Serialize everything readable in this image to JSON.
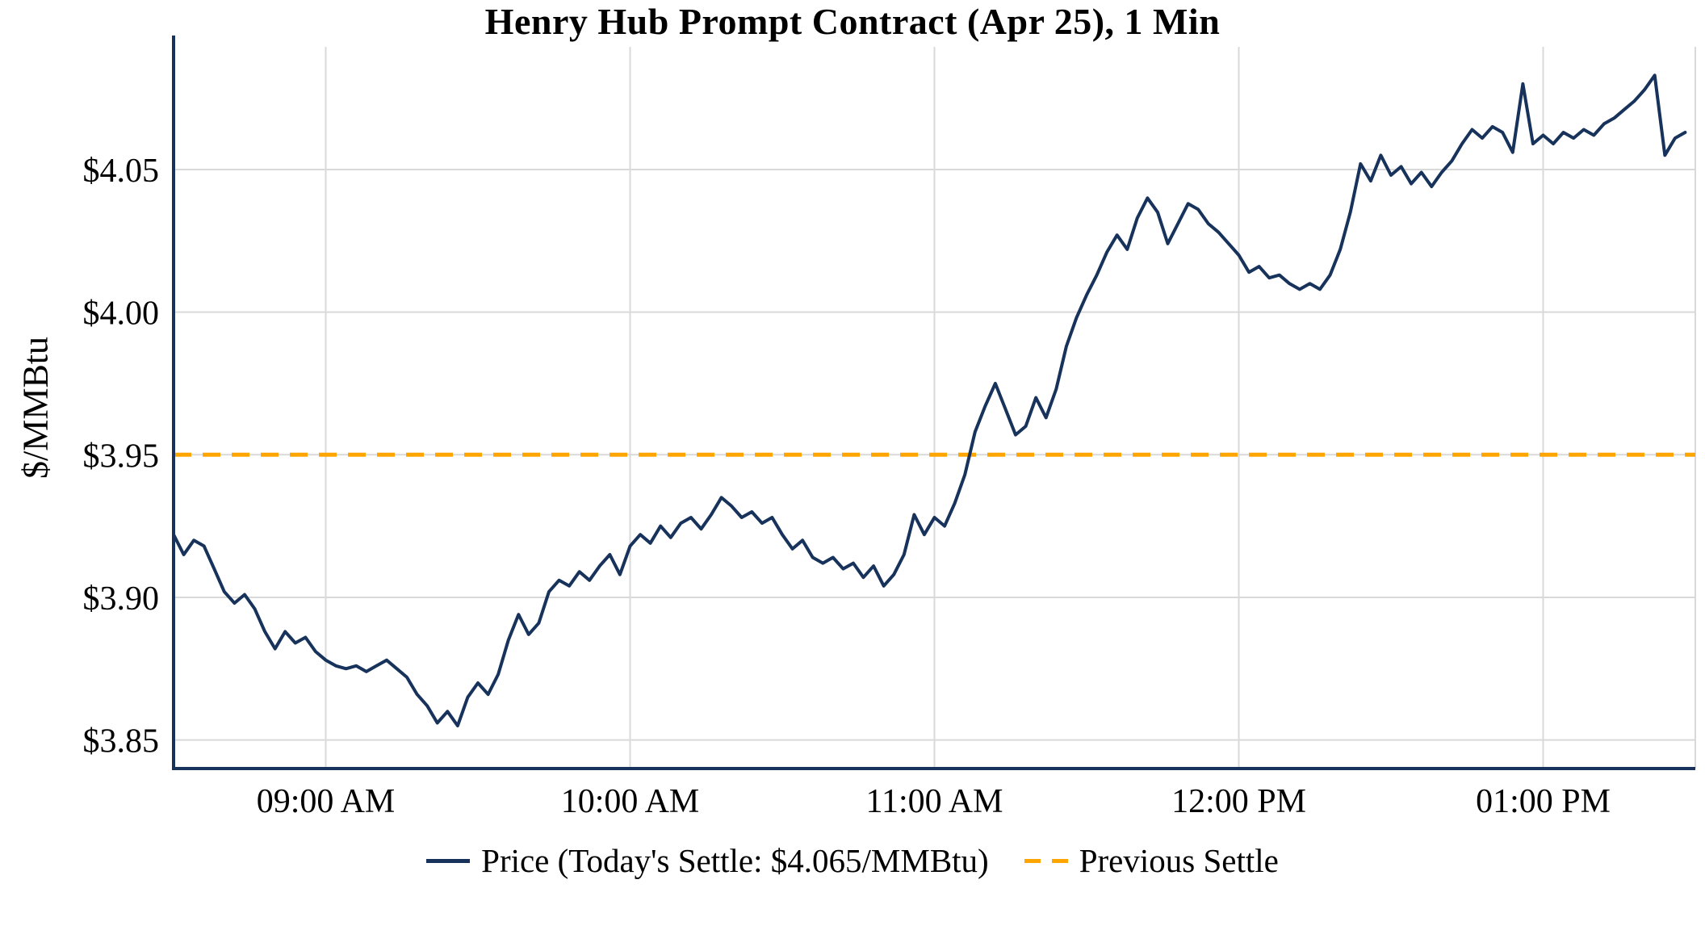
{
  "chart_data": {
    "type": "line",
    "title": "Henry Hub Prompt Contract (Apr 25), 1 Min",
    "xlabel": "",
    "ylabel": "$/MMBtu",
    "grid": true,
    "legend_position": "bottom",
    "legend": {
      "price": "Price (Today's Settle: $4.065/MMBtu)",
      "previous_settle": "Previous Settle"
    },
    "todays_settle": 4.065,
    "previous_settle": 3.95,
    "ylim": [
      3.84,
      4.093
    ],
    "y_ticks": [
      {
        "value": 3.85,
        "label": "$3.85"
      },
      {
        "value": 3.9,
        "label": "$3.90"
      },
      {
        "value": 3.95,
        "label": "$3.95"
      },
      {
        "value": 4.0,
        "label": "$4.00"
      },
      {
        "value": 4.05,
        "label": "$4.05"
      }
    ],
    "x_range_minutes": [
      510,
      810
    ],
    "x_ticks": [
      {
        "minutes": 540,
        "label": "09:00 AM"
      },
      {
        "minutes": 600,
        "label": "10:00 AM"
      },
      {
        "minutes": 660,
        "label": "11:00 AM"
      },
      {
        "minutes": 720,
        "label": "12:00 PM"
      },
      {
        "minutes": 780,
        "label": "01:00 PM"
      }
    ],
    "x_start": "08:30",
    "x_interval_minutes": 2,
    "series": [
      {
        "name": "Price",
        "values": [
          3.922,
          3.915,
          3.92,
          3.918,
          3.91,
          3.902,
          3.898,
          3.901,
          3.896,
          3.888,
          3.882,
          3.888,
          3.884,
          3.886,
          3.881,
          3.878,
          3.876,
          3.875,
          3.876,
          3.874,
          3.876,
          3.878,
          3.875,
          3.872,
          3.866,
          3.862,
          3.856,
          3.86,
          3.855,
          3.865,
          3.87,
          3.866,
          3.873,
          3.885,
          3.894,
          3.887,
          3.891,
          3.902,
          3.906,
          3.904,
          3.909,
          3.906,
          3.911,
          3.915,
          3.908,
          3.918,
          3.922,
          3.919,
          3.925,
          3.921,
          3.926,
          3.928,
          3.924,
          3.929,
          3.935,
          3.932,
          3.928,
          3.93,
          3.926,
          3.928,
          3.922,
          3.917,
          3.92,
          3.914,
          3.912,
          3.914,
          3.91,
          3.912,
          3.907,
          3.911,
          3.904,
          3.908,
          3.915,
          3.929,
          3.922,
          3.928,
          3.925,
          3.933,
          3.943,
          3.958,
          3.967,
          3.975,
          3.966,
          3.957,
          3.96,
          3.97,
          3.963,
          3.973,
          3.988,
          3.998,
          4.006,
          4.013,
          4.021,
          4.027,
          4.022,
          4.033,
          4.04,
          4.035,
          4.024,
          4.031,
          4.038,
          4.036,
          4.031,
          4.028,
          4.024,
          4.02,
          4.014,
          4.016,
          4.012,
          4.013,
          4.01,
          4.008,
          4.01,
          4.008,
          4.013,
          4.022,
          4.035,
          4.052,
          4.046,
          4.055,
          4.048,
          4.051,
          4.045,
          4.049,
          4.044,
          4.049,
          4.053,
          4.059,
          4.064,
          4.061,
          4.065,
          4.063,
          4.056,
          4.08,
          4.059,
          4.062,
          4.059,
          4.063,
          4.061,
          4.064,
          4.062,
          4.066,
          4.068,
          4.071,
          4.074,
          4.078,
          4.083,
          4.055,
          4.061,
          4.063
        ]
      }
    ]
  },
  "colors": {
    "price_line": "#17325b",
    "prev_settle": "#ffa500",
    "grid": "#d9d9d9",
    "axis": "#17325b",
    "text": "#000000"
  }
}
